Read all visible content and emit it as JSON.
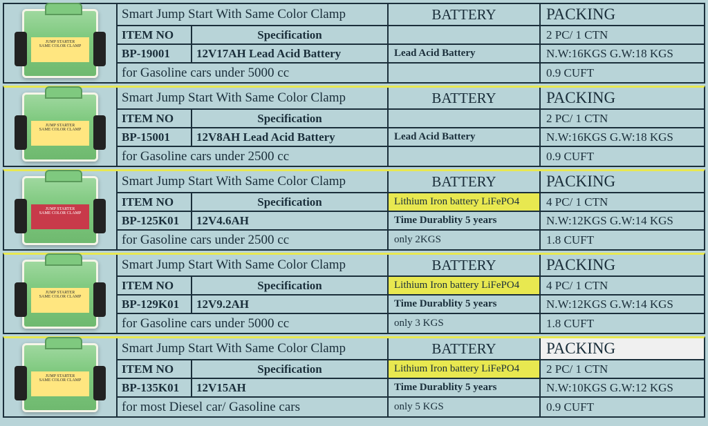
{
  "products": [
    {
      "title": "Smart Jump Start With Same Color Clamp",
      "item_label": "ITEM NO",
      "spec_label": "Specification",
      "item_no": "BP-19001",
      "spec": "12V17AH  Lead Acid Battery",
      "note": "for Gasoline cars under 5000 cc",
      "battery_header": "BATTERY",
      "battery_r2": "",
      "battery_r3": "Lead Acid Battery",
      "battery_r4": "",
      "battery_hl": false,
      "packing_header": "PACKING",
      "packing_r2": "2 PC/  1 CTN",
      "packing_r3": "N.W:16KGS  G.W:18 KGS",
      "packing_r4": "0.9 CUFT",
      "img_variant": "green",
      "packing_white": false,
      "yellow_top": false
    },
    {
      "title": "Smart Jump Start With Same Color Clamp",
      "item_label": "ITEM NO",
      "spec_label": "Specification",
      "item_no": "BP-15001",
      "spec": "12V8AH  Lead Acid Battery",
      "note": "for Gasoline cars under 2500 cc",
      "battery_header": "BATTERY",
      "battery_r2": "",
      "battery_r3": "Lead Acid Battery",
      "battery_r4": "",
      "battery_hl": false,
      "packing_header": "PACKING",
      "packing_r2": "2 PC/  1 CTN",
      "packing_r3": "N.W:16KGS  G.W:18 KGS",
      "packing_r4": "0.9 CUFT",
      "img_variant": "green",
      "packing_white": false,
      "yellow_top": true
    },
    {
      "title": "Smart Jump Start With Same Color Clamp",
      "item_label": "ITEM NO",
      "spec_label": "Specification",
      "item_no": "BP-125K01",
      "spec": "12V4.6AH",
      "note": "for Gasoline cars under 2500 cc",
      "battery_header": "BATTERY",
      "battery_r2": "Lithium Iron battery LiFePO4",
      "battery_r3": "Time Durablity 5 years",
      "battery_r4": "only 2KGS",
      "battery_hl": true,
      "packing_header": "PACKING",
      "packing_r2": "4 PC/  1 CTN",
      "packing_r3": "N.W:12KGS  G.W:14 KGS",
      "packing_r4": "1.8 CUFT",
      "img_variant": "red",
      "packing_white": false,
      "yellow_top": true
    },
    {
      "title": "Smart Jump Start With Same Color Clamp",
      "item_label": "ITEM NO",
      "spec_label": "Specification",
      "item_no": "BP-129K01",
      "spec": "12V9.2AH",
      "note": "for Gasoline cars under 5000 cc",
      "battery_header": "BATTERY",
      "battery_r2": "Lithium Iron battery LiFePO4",
      "battery_r3": "Time Durablity 5 years",
      "battery_r4": "only 3 KGS",
      "battery_hl": true,
      "packing_header": "PACKING",
      "packing_r2": "4 PC/  1 CTN",
      "packing_r3": "N.W:12KGS  G.W:14 KGS",
      "packing_r4": "1.8 CUFT",
      "img_variant": "green",
      "packing_white": false,
      "yellow_top": true
    },
    {
      "title": "Smart Jump Start With Same Color Clamp",
      "item_label": "ITEM NO",
      "spec_label": "Specification",
      "item_no": "BP-135K01",
      "spec": "12V15AH",
      "note": "for most  Diesel car/  Gasoline cars",
      "battery_header": "BATTERY",
      "battery_r2": "Lithium Iron battery LiFePO4",
      "battery_r3": "Time Durablity 5 years",
      "battery_r4": "only 5 KGS",
      "battery_hl": true,
      "packing_header": "PACKING",
      "packing_r2": "2 PC/  1 CTN",
      "packing_r3": "N.W:10KGS  G.W:12 KGS",
      "packing_r4": "0.9 CUFT",
      "img_variant": "green",
      "packing_white": true,
      "yellow_top": true
    }
  ],
  "colors": {
    "bg": "#b8d4d8",
    "border": "#1a2e3a",
    "highlight": "#e8e850",
    "white": "#f0f0f0"
  }
}
